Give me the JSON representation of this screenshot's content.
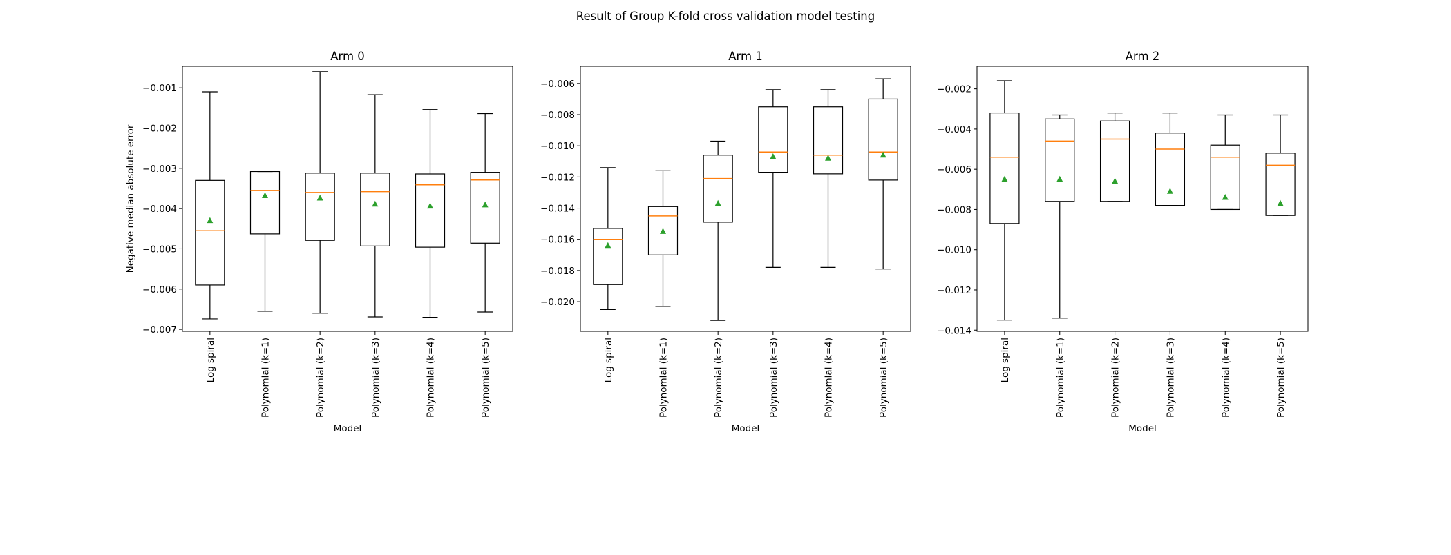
{
  "figure": {
    "title": "Result of Group K-fold cross validation model testing"
  },
  "style": {
    "box_color": "#000000",
    "median_color": "#ff7f0e",
    "mean_marker_color": "#2ca02c"
  },
  "chart_data": [
    {
      "type": "box",
      "title": "Arm 0",
      "xlabel": "Model",
      "ylabel": "Negative median absolute error",
      "ylim": [
        -0.00705,
        -0.000465
      ],
      "yticks": [
        -0.007,
        -0.006,
        -0.005,
        -0.004,
        -0.003,
        -0.002,
        -0.001
      ],
      "ytick_labels": [
        "−0.007",
        "−0.006",
        "−0.005",
        "−0.004",
        "−0.003",
        "−0.002",
        "−0.001"
      ],
      "categories": [
        "Log spiral",
        "Polynomial (k=1)",
        "Polynomial (k=2)",
        "Polynomial (k=3)",
        "Polynomial (k=4)",
        "Polynomial (k=5)"
      ],
      "boxes": [
        {
          "whislo": -0.00674,
          "q1": -0.0059,
          "med": -0.00455,
          "q3": -0.0033,
          "whishi": -0.0011,
          "mean": -0.0043
        },
        {
          "whislo": -0.00655,
          "q1": -0.00463,
          "med": -0.00355,
          "q3": -0.00308,
          "whishi": -0.00308,
          "mean": -0.00368
        },
        {
          "whislo": -0.0066,
          "q1": -0.00479,
          "med": -0.0036,
          "q3": -0.00312,
          "whishi": -0.0006,
          "mean": -0.00374
        },
        {
          "whislo": -0.00669,
          "q1": -0.00493,
          "med": -0.00358,
          "q3": -0.00312,
          "whishi": -0.00117,
          "mean": -0.00389
        },
        {
          "whislo": -0.0067,
          "q1": -0.00496,
          "med": -0.00341,
          "q3": -0.00314,
          "whishi": -0.00154,
          "mean": -0.00394
        },
        {
          "whislo": -0.00657,
          "q1": -0.00486,
          "med": -0.00329,
          "q3": -0.0031,
          "whishi": -0.00164,
          "mean": -0.00391
        }
      ]
    },
    {
      "type": "box",
      "title": "Arm 1",
      "xlabel": "Model",
      "ylabel": "",
      "ylim": [
        -0.0219,
        -0.0049
      ],
      "yticks": [
        -0.02,
        -0.018,
        -0.016,
        -0.014,
        -0.012,
        -0.01,
        -0.008,
        -0.006
      ],
      "ytick_labels": [
        "−0.020",
        "−0.018",
        "−0.016",
        "−0.014",
        "−0.012",
        "−0.010",
        "−0.008",
        "−0.006"
      ],
      "categories": [
        "Log spiral",
        "Polynomial (k=1)",
        "Polynomial (k=2)",
        "Polynomial (k=3)",
        "Polynomial (k=4)",
        "Polynomial (k=5)"
      ],
      "boxes": [
        {
          "whislo": -0.0205,
          "q1": -0.0189,
          "med": -0.016,
          "q3": -0.0153,
          "whishi": -0.0114,
          "mean": -0.0164
        },
        {
          "whislo": -0.0203,
          "q1": -0.017,
          "med": -0.0145,
          "q3": -0.0139,
          "whishi": -0.0116,
          "mean": -0.0155
        },
        {
          "whislo": -0.0212,
          "q1": -0.0149,
          "med": -0.0121,
          "q3": -0.0106,
          "whishi": -0.0097,
          "mean": -0.0137
        },
        {
          "whislo": -0.0178,
          "q1": -0.0117,
          "med": -0.0104,
          "q3": -0.0075,
          "whishi": -0.0064,
          "mean": -0.0107
        },
        {
          "whislo": -0.0178,
          "q1": -0.0118,
          "med": -0.0106,
          "q3": -0.0075,
          "whishi": -0.0064,
          "mean": -0.0108
        },
        {
          "whislo": -0.0179,
          "q1": -0.0122,
          "med": -0.0104,
          "q3": -0.007,
          "whishi": -0.0057,
          "mean": -0.0106
        }
      ]
    },
    {
      "type": "box",
      "title": "Arm 2",
      "xlabel": "Model",
      "ylabel": "",
      "ylim": [
        -0.01406,
        -0.00088
      ],
      "yticks": [
        -0.014,
        -0.012,
        -0.01,
        -0.008,
        -0.006,
        -0.004,
        -0.002
      ],
      "ytick_labels": [
        "−0.014",
        "−0.012",
        "−0.010",
        "−0.008",
        "−0.006",
        "−0.004",
        "−0.002"
      ],
      "categories": [
        "Log spiral",
        "Polynomial (k=1)",
        "Polynomial (k=2)",
        "Polynomial (k=3)",
        "Polynomial (k=4)",
        "Polynomial (k=5)"
      ],
      "boxes": [
        {
          "whislo": -0.0135,
          "q1": -0.0087,
          "med": -0.0054,
          "q3": -0.0032,
          "whishi": -0.0016,
          "mean": -0.0065
        },
        {
          "whislo": -0.0134,
          "q1": -0.0076,
          "med": -0.0046,
          "q3": -0.0035,
          "whishi": -0.0033,
          "mean": -0.0065
        },
        {
          "whislo": -0.0076,
          "q1": -0.0076,
          "med": -0.0045,
          "q3": -0.0036,
          "whishi": -0.0032,
          "mean": -0.0066
        },
        {
          "whislo": -0.0078,
          "q1": -0.0078,
          "med": -0.005,
          "q3": -0.0042,
          "whishi": -0.0032,
          "mean": -0.0071
        },
        {
          "whislo": -0.008,
          "q1": -0.008,
          "med": -0.0054,
          "q3": -0.0048,
          "whishi": -0.0033,
          "mean": -0.0074
        },
        {
          "whislo": -0.0083,
          "q1": -0.0083,
          "med": -0.0058,
          "q3": -0.0052,
          "whishi": -0.0033,
          "mean": -0.0077
        }
      ]
    }
  ]
}
